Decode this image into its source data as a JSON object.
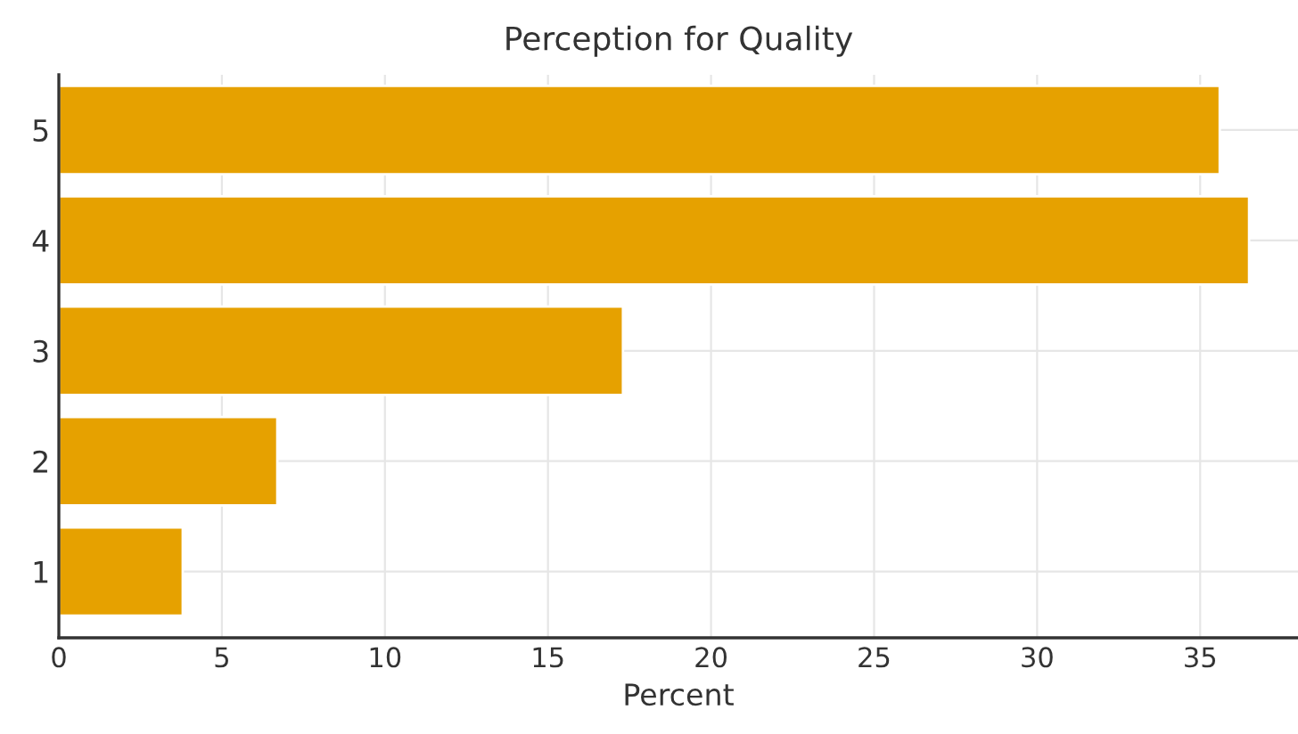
{
  "chart_data": {
    "type": "bar",
    "orientation": "horizontal",
    "title": "Perception for Quality",
    "xlabel": "Percent",
    "categories": [
      "5",
      "4",
      "3",
      "2",
      "1"
    ],
    "values": [
      35.6,
      36.5,
      17.3,
      6.7,
      3.8
    ],
    "color": "#e6a100",
    "xlim": [
      0,
      38
    ],
    "xticks": [
      0,
      5,
      10,
      15,
      20,
      25,
      30,
      35
    ],
    "grid": true
  }
}
